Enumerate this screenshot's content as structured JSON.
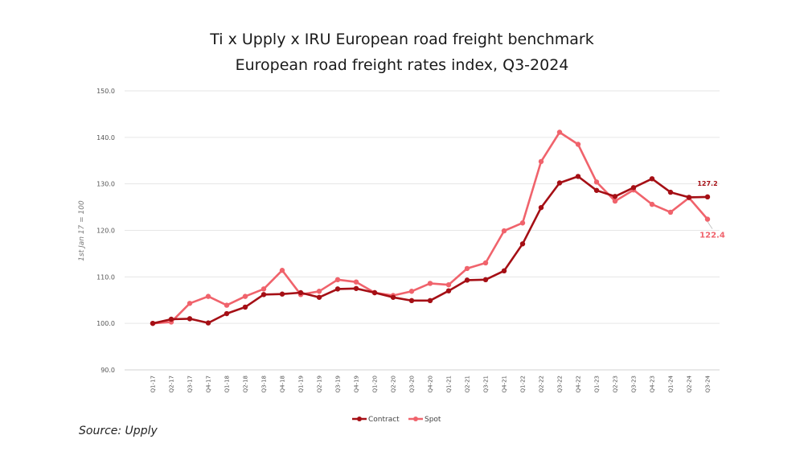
{
  "chart_data": {
    "type": "line",
    "title": "Ti x Upply x IRU European road freight benchmark",
    "subtitle": "European road freight rates index, Q3-2024",
    "xlabel": "",
    "ylabel": "1st Jan 17 = 100",
    "ylim": [
      90,
      150
    ],
    "yticks": [
      "90.0",
      "100.0",
      "110.0",
      "120.0",
      "130.0",
      "140.0",
      "150.0"
    ],
    "ytick_values": [
      90,
      100,
      110,
      120,
      130,
      140,
      150
    ],
    "grid": true,
    "legend": "bottom-center",
    "categories": [
      "Q1-17",
      "Q2-17",
      "Q3-17",
      "Q4-17",
      "Q1-18",
      "Q2-18",
      "Q3-18",
      "Q4-18",
      "Q1-19",
      "Q2-19",
      "Q3-19",
      "Q4-19",
      "Q1-20",
      "Q2-20",
      "Q3-20",
      "Q4-20",
      "Q1-21",
      "Q2-21",
      "Q3-21",
      "Q4-21",
      "Q1-22",
      "Q2-22",
      "Q3-22",
      "Q4-22",
      "Q1-23",
      "Q2-23",
      "Q3-23",
      "Q4-23",
      "Q1-24",
      "Q2-24",
      "Q3-24"
    ],
    "series": [
      {
        "name": "Contract",
        "color": "#a50f15",
        "values": [
          100.0,
          100.9,
          101.0,
          100.1,
          102.1,
          103.5,
          106.2,
          106.3,
          106.6,
          105.6,
          107.4,
          107.5,
          106.6,
          105.6,
          104.9,
          104.9,
          107.0,
          109.3,
          109.4,
          111.3,
          117.1,
          124.9,
          130.2,
          131.6,
          128.6,
          127.3,
          129.2,
          131.1,
          128.2,
          127.1,
          127.2
        ],
        "end_label": "127.2"
      },
      {
        "name": "Spot",
        "color": "#f0636c",
        "values": [
          100.0,
          100.3,
          104.3,
          105.8,
          103.9,
          105.8,
          107.4,
          111.4,
          106.2,
          106.9,
          109.4,
          108.9,
          106.6,
          106.0,
          106.9,
          108.6,
          108.3,
          111.8,
          113.0,
          119.9,
          121.6,
          134.8,
          141.1,
          138.5,
          130.4,
          126.3,
          128.7,
          125.6,
          123.9,
          127.0,
          122.4
        ],
        "end_label": "122.4"
      }
    ]
  },
  "footer": {
    "source": "Source: Upply"
  }
}
